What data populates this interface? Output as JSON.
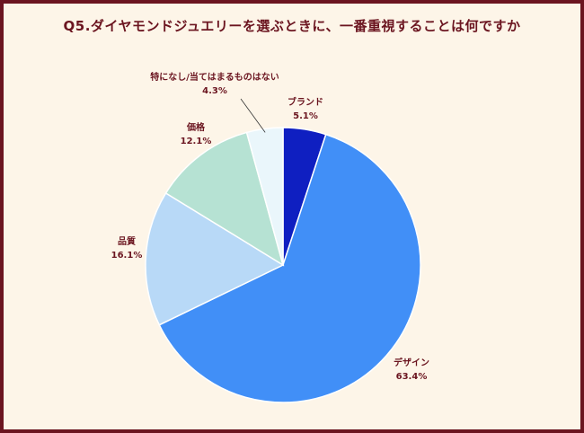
{
  "chart_data": {
    "type": "pie",
    "title": "Q5.ダイヤモンドジュエリーを選ぶときに、一番重視することは何ですか",
    "start_angle_deg": 0,
    "direction": "clockwise",
    "slices": [
      {
        "label": "ブランド",
        "value": 5.1,
        "value_label": "5.1%",
        "color": "#0f1fc1"
      },
      {
        "label": "デザイン",
        "value": 63.4,
        "value_label": "63.4%",
        "color": "#418ff7"
      },
      {
        "label": "品質",
        "value": 16.1,
        "value_label": "16.1%",
        "color": "#b8d9f7"
      },
      {
        "label": "価格",
        "value": 12.1,
        "value_label": "12.1%",
        "color": "#b6e2d3"
      },
      {
        "label": "特になし/当てはまるものはない",
        "value": 4.3,
        "value_label": "4.3%",
        "color": "#eaf6fb"
      }
    ]
  },
  "colors": {
    "background": "#fdf5e8",
    "border": "#6b1520",
    "text": "#6b1520"
  }
}
